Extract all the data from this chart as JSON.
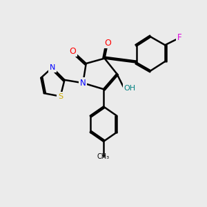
{
  "bg_color": "#ebebeb",
  "bond_color": "#000000",
  "atom_colors": {
    "O": "#ff0000",
    "N": "#0000ff",
    "S": "#ccaa00",
    "F": "#dd00dd",
    "OH": "#008080",
    "C": "#000000"
  },
  "line_width": 1.8,
  "dbo": 0.065,
  "figsize": [
    3.0,
    3.0
  ],
  "dpi": 100
}
